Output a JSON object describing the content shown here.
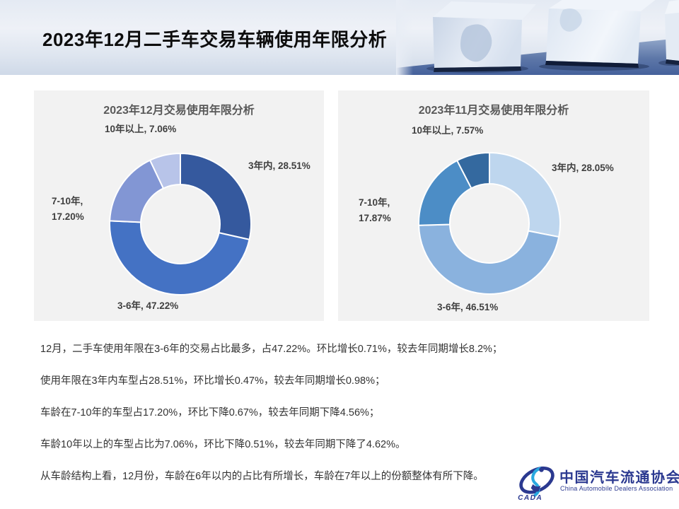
{
  "slide": {
    "title": "2023年12月二手车交易车辆使用年限分析"
  },
  "chart_data": [
    {
      "type": "pie",
      "subtype": "donut",
      "title": "2023年12月交易使用年限分析",
      "categories": [
        "3年内",
        "3-6年",
        "7-10年",
        "10年以上"
      ],
      "values": [
        28.51,
        47.22,
        17.2,
        7.06
      ],
      "unit": "%",
      "colors": [
        "#35599E",
        "#4472C4",
        "#8296D4",
        "#B8C4E9"
      ],
      "start_angle_deg": 0,
      "direction": "clockwise",
      "legend": "none",
      "labels": {
        "within3": "3年内, 28.51%",
        "y3to6": "3-6年, 47.22%",
        "y7to10_line1": "7-10年,",
        "y7to10_line2": "17.20%",
        "over10": "10年以上, 7.06%"
      }
    },
    {
      "type": "pie",
      "subtype": "donut",
      "title": "2023年11月交易使用年限分析",
      "categories": [
        "3年内",
        "3-6年",
        "7-10年",
        "10年以上"
      ],
      "values": [
        28.05,
        46.51,
        17.87,
        7.57
      ],
      "unit": "%",
      "colors": [
        "#BED6EE",
        "#8AB2DE",
        "#4C8DC6",
        "#34699F"
      ],
      "start_angle_deg": 0,
      "direction": "clockwise",
      "legend": "none",
      "labels": {
        "within3": "3年内, 28.05%",
        "y3to6": "3-6年, 46.51%",
        "y7to10_line1": "7-10年,",
        "y7to10_line2": "17.87%",
        "over10": "10年以上, 7.57%"
      }
    }
  ],
  "analysis": {
    "lines": [
      "12月，二手车使用年限在3-6年的交易占比最多，占47.22%。环比增长0.71%，较去年同期增长8.2%；",
      "使用年限在3年内车型占28.51%，环比增长0.47%，较去年同期增长0.98%；",
      "车龄在7-10年的车型占17.20%，环比下降0.67%，较去年同期下降4.56%；",
      "车龄10年以上的车型占比为7.06%，环比下降0.51%，较去年同期下降了4.62%。",
      "从车龄结构上看，12月份，车龄在6年以内的占比有所增长，车龄在7年以上的份额整体有所下降。"
    ]
  },
  "logo": {
    "mark": "CADA",
    "name_cn": "中国汽车流通协会",
    "name_en": "China Automobile Dealers Association",
    "color_navy": "#2B3990",
    "color_cyan": "#29A9E0"
  }
}
